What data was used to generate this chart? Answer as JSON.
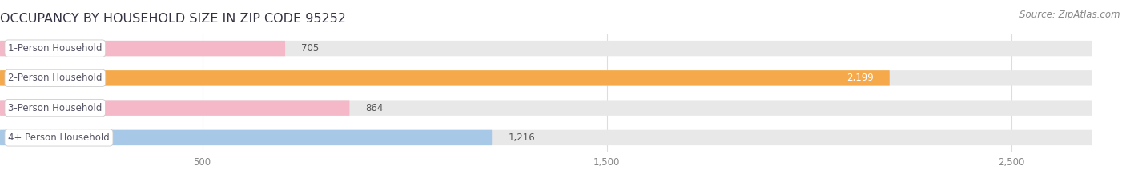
{
  "title": "OCCUPANCY BY HOUSEHOLD SIZE IN ZIP CODE 95252",
  "source": "Source: ZipAtlas.com",
  "categories": [
    "1-Person Household",
    "2-Person Household",
    "3-Person Household",
    "4+ Person Household"
  ],
  "values": [
    705,
    2199,
    864,
    1216
  ],
  "bar_colors": [
    "#f5b8c8",
    "#f5a94a",
    "#f5b8c8",
    "#a8c8e8"
  ],
  "bar_bg_color": "#e8e8e8",
  "background_color": "#ffffff",
  "grid_color": "#dddddd",
  "label_color": "#555566",
  "title_color": "#333344",
  "value_color_inside": "#ffffff",
  "value_color_outside": "#555555",
  "source_color": "#888888",
  "xlim": [
    0,
    2700
  ],
  "xticks": [
    500,
    1500,
    2500
  ],
  "bar_height": 0.52,
  "title_fontsize": 11.5,
  "label_fontsize": 8.5,
  "value_fontsize": 8.5,
  "source_fontsize": 8.5,
  "tick_fontsize": 8.5
}
